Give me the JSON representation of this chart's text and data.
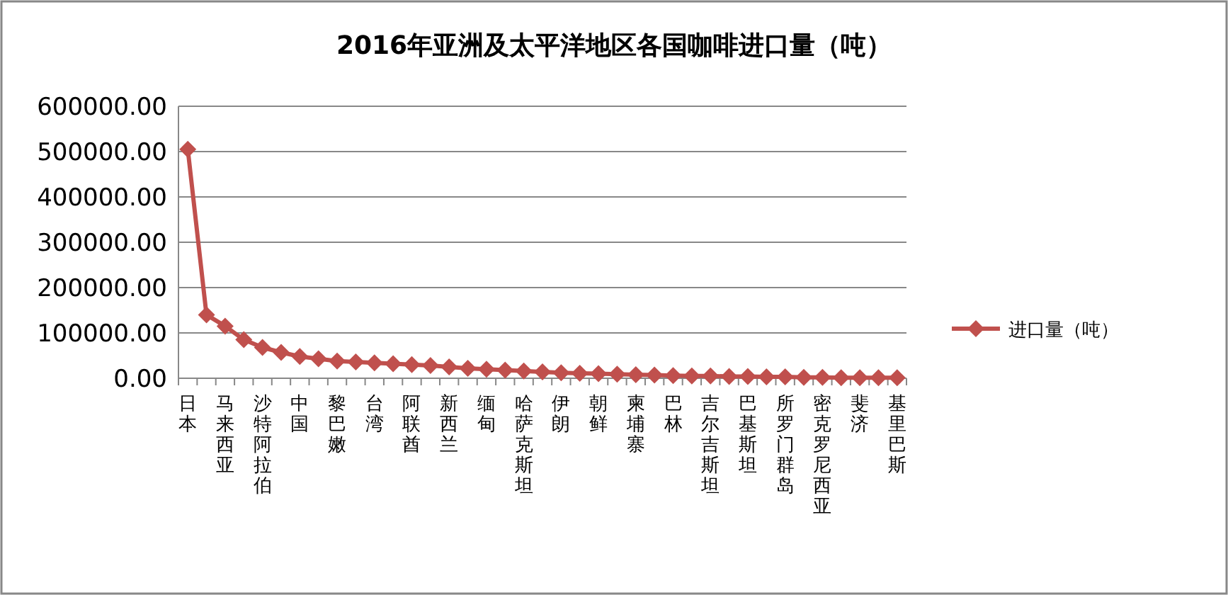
{
  "chart_data": {
    "type": "line",
    "title": "2016年亚洲及太平洋地区各国咖啡进口量（吨）",
    "categories": [
      "日本",
      null,
      "马来西亚",
      null,
      "沙特阿拉伯",
      null,
      "中国",
      null,
      "黎巴嫩",
      null,
      "台湾",
      null,
      "阿联酋",
      null,
      "新西兰",
      null,
      "缅甸",
      null,
      "哈萨克斯坦",
      null,
      "伊朗",
      null,
      "朝鲜",
      null,
      "柬埔寨",
      null,
      "巴林",
      null,
      "吉尔吉斯坦",
      null,
      "巴基斯坦",
      null,
      "所罗门群岛",
      null,
      "密克罗尼西亚",
      null,
      "斐济",
      null,
      "基里巴斯"
    ],
    "series": [
      {
        "name": "进口量（吨）",
        "color": "#c0504d",
        "values": [
          505000,
          140000,
          115000,
          85000,
          68000,
          57000,
          48000,
          43000,
          38000,
          36000,
          34000,
          32000,
          30000,
          28000,
          25000,
          22000,
          20000,
          18000,
          16000,
          14000,
          12000,
          11000,
          10000,
          9000,
          8000,
          7000,
          6000,
          5000,
          5000,
          4000,
          4000,
          3000,
          3000,
          2000,
          2000,
          1000,
          1000,
          1000,
          1000
        ]
      }
    ],
    "ylim": [
      0,
      600000
    ],
    "yticks": [
      {
        "value": 0,
        "label": "0.00"
      },
      {
        "value": 100000,
        "label": "100000.00"
      },
      {
        "value": 200000,
        "label": "200000.00"
      },
      {
        "value": 300000,
        "label": "300000.00"
      },
      {
        "value": 400000,
        "label": "400000.00"
      },
      {
        "value": 500000,
        "label": "500000.00"
      },
      {
        "value": 600000,
        "label": "600000.00"
      }
    ],
    "grid": "y",
    "legend": "right",
    "marker": "diamond",
    "line_style": "solid"
  }
}
